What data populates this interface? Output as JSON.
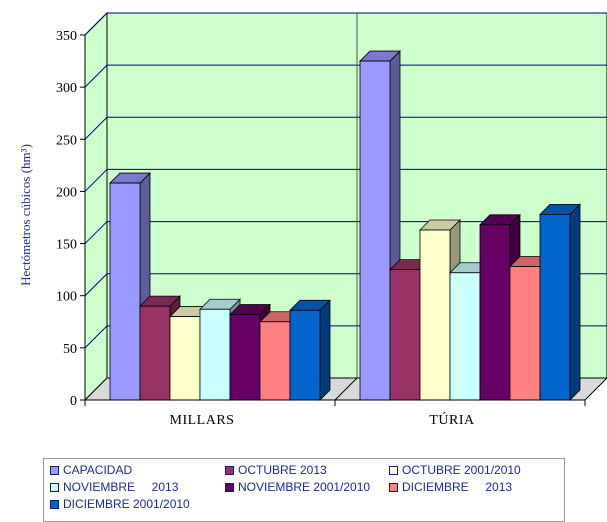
{
  "chart_data": {
    "type": "bar",
    "categories": [
      "MILLARS",
      "TÚRIA"
    ],
    "series": [
      {
        "name": "CAPACIDAD",
        "values": [
          208,
          325
        ],
        "color": "#9999ff"
      },
      {
        "name": "OCTUBRE 2013",
        "values": [
          90,
          125
        ],
        "color": "#993366"
      },
      {
        "name": "OCTUBRE 2001/2010",
        "values": [
          80,
          163
        ],
        "color": "#ffffcc"
      },
      {
        "name": "NOVIEMBRE     2013",
        "values": [
          87,
          122
        ],
        "color": "#ccffff"
      },
      {
        "name": "NOVIEMBRE 2001/2010",
        "values": [
          82,
          168
        ],
        "color": "#660066"
      },
      {
        "name": "DICIEMBRE     2013",
        "values": [
          75,
          128
        ],
        "color": "#ff8080"
      },
      {
        "name": "DICIEMBRE 2001/2010",
        "values": [
          86,
          178
        ],
        "color": "#0066cc"
      }
    ],
    "ylabel": "Hectómetros cúbicos (hm³)",
    "ylim": [
      0,
      350
    ],
    "yticks": [
      "0",
      "50",
      "100",
      "150",
      "200",
      "250",
      "300",
      "350"
    ],
    "grid": true,
    "legend_position": "bottom",
    "wall_color": "#ccffcc",
    "grid_color": "#000080"
  }
}
